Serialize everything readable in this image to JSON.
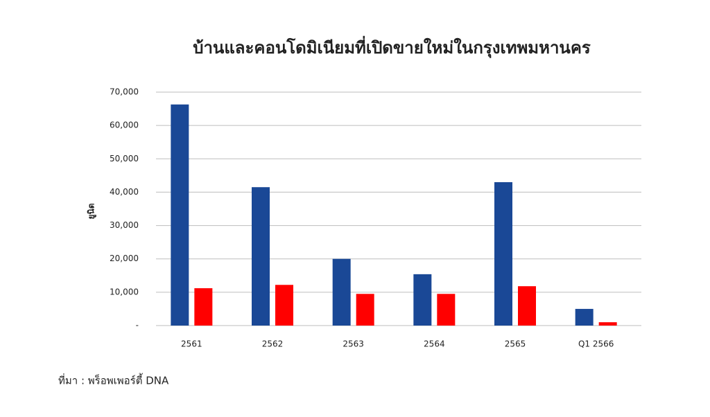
{
  "chart_data": {
    "type": "bar",
    "title": "บ้านและคอนโดมิเนียมที่เปิดขายใหม่ในกรุงเทพมหานคร",
    "y_label": "ยูนิต",
    "source": "ที่มา : พร็อพเพอร์ตี้ DNA",
    "categories": [
      "2561",
      "2562",
      "2563",
      "2564",
      "2565",
      "Q1 2566"
    ],
    "series": [
      {
        "color": "#1a4896",
        "values": [
          66300,
          41500,
          20000,
          15400,
          43000,
          5000
        ]
      },
      {
        "color": "#ff0000",
        "values": [
          11200,
          12200,
          9500,
          9500,
          11800,
          1000
        ]
      }
    ],
    "ylim": [
      0,
      70000
    ],
    "yticks": [
      {
        "value": 0,
        "label": "-"
      },
      {
        "value": 10000,
        "label": "10,000"
      },
      {
        "value": 20000,
        "label": "20,000"
      },
      {
        "value": 30000,
        "label": "30,000"
      },
      {
        "value": 40000,
        "label": "40,000"
      },
      {
        "value": 50000,
        "label": "50,000"
      },
      {
        "value": 60000,
        "label": "60,000"
      },
      {
        "value": 70000,
        "label": "70,000"
      }
    ],
    "grid": true
  }
}
